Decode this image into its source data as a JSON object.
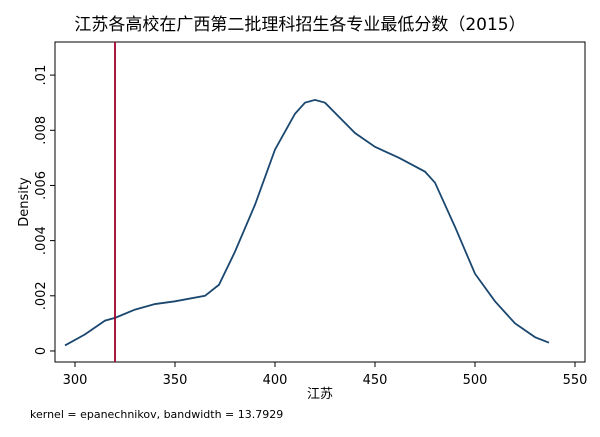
{
  "chart_data": {
    "type": "line",
    "title": "江苏各高校在广西第二批理科招生各专业最低分数（2015）",
    "x_label": "江苏",
    "y_label": "Density",
    "note": "kernel = epanechnikov, bandwidth = 13.7929",
    "x": [
      295,
      305,
      315,
      320,
      330,
      340,
      350,
      365,
      372,
      380,
      390,
      400,
      410,
      415,
      420,
      425,
      440,
      450,
      462,
      475,
      480,
      490,
      500,
      510,
      520,
      530,
      537
    ],
    "series": [
      {
        "color": "#1a476f",
        "values": [
          0.0002,
          0.0006,
          0.0011,
          0.0012,
          0.0015,
          0.0017,
          0.0018,
          0.002,
          0.0024,
          0.0036,
          0.0053,
          0.0073,
          0.0086,
          0.009,
          0.0091,
          0.009,
          0.0079,
          0.0074,
          0.007,
          0.0065,
          0.0061,
          0.0045,
          0.0028,
          0.0018,
          0.001,
          0.0005,
          0.0003
        ]
      }
    ],
    "xline": 320,
    "xline_color": "#a0002a",
    "xlim": [
      290,
      555
    ],
    "ylim": [
      -0.0004,
      0.0112
    ],
    "xticks": [
      300,
      350,
      400,
      450,
      500,
      550
    ],
    "yticks": [
      0,
      {
        "value": 0.002,
        "label": ".002"
      },
      {
        "value": 0.004,
        "label": ".004"
      },
      {
        "value": 0.006,
        "label": ".006"
      },
      {
        "value": 0.008,
        "label": ".008"
      },
      {
        "value": 0.01,
        "label": ".01"
      }
    ]
  }
}
